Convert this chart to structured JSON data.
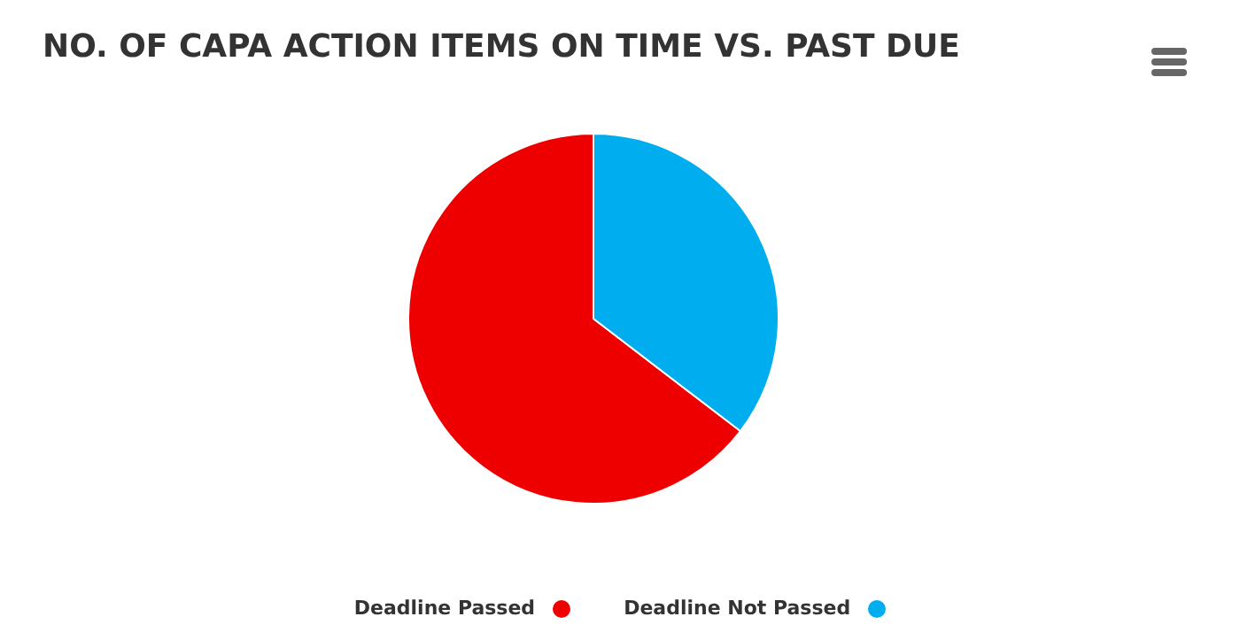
{
  "chart_data": {
    "type": "pie",
    "title": "NO. OF CAPA ACTION ITEMS ON TIME VS. PAST DUE",
    "categories": [
      "Deadline Passed",
      "Deadline Not Passed"
    ],
    "values": [
      64.6,
      35.4
    ],
    "colors": [
      "#ee0000",
      "#00aeef"
    ],
    "legend": "bottom"
  }
}
